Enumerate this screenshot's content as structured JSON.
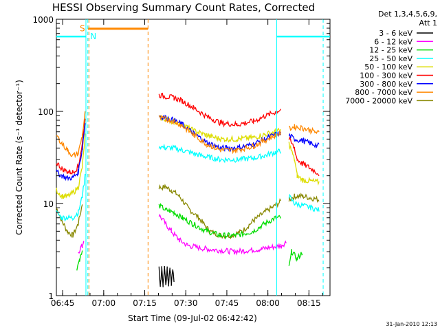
{
  "chart_data": {
    "type": "line",
    "title": "HESSI Observing Summary Count Rates, Corrected",
    "xlabel": "Start Time (09-Jul-02 06:42:42)",
    "ylabel": "Corrected Count Rate (s⁻¹ detector⁻¹)",
    "y_scale": "log",
    "ylim": [
      1,
      1000
    ],
    "x_range_minutes": [
      "06:42:42",
      "08:22:42"
    ],
    "x_ticks": [
      {
        "m": 2.3,
        "label": "06:45"
      },
      {
        "m": 17.3,
        "label": "07:00"
      },
      {
        "m": 32.3,
        "label": "07:15"
      },
      {
        "m": 47.3,
        "label": "07:30"
      },
      {
        "m": 62.3,
        "label": "07:45"
      },
      {
        "m": 77.3,
        "label": "08:00"
      },
      {
        "m": 92.3,
        "label": "08:15"
      }
    ],
    "y_ticks": [
      {
        "v": 1,
        "label": "1"
      },
      {
        "v": 10,
        "label": "10"
      },
      {
        "v": 100,
        "label": "100"
      },
      {
        "v": 1000,
        "label": "1000"
      }
    ],
    "legend": {
      "header1": "Det 1,3,4,5,6,9,",
      "header2": "Att 1",
      "entries": [
        {
          "name": "3 - 6 keV",
          "color": "#000000"
        },
        {
          "name": "6 - 12 keV",
          "color": "#ff00ff"
        },
        {
          "name": "12 - 25 keV",
          "color": "#00dd00"
        },
        {
          "name": "25 - 50 keV",
          "color": "#00ffff"
        },
        {
          "name": "50 - 100 keV",
          "color": "#dddd00"
        },
        {
          "name": "100 - 300 keV",
          "color": "#ff0000"
        },
        {
          "name": "300 - 800 keV",
          "color": "#0000ff"
        },
        {
          "name": "800 - 7000 keV",
          "color": "#ff8800"
        },
        {
          "name": "7000 - 20000 keV",
          "color": "#888800"
        }
      ]
    },
    "series": [
      {
        "name": "7000 - 20000 keV",
        "color": "#888800",
        "segments": [
          [
            [
              0,
              9
            ],
            [
              2,
              6.5
            ],
            [
              4,
              5
            ],
            [
              6,
              4.5
            ],
            [
              8,
              6
            ],
            [
              9.5,
              10
            ]
          ],
          [
            [
              37.5,
              15
            ],
            [
              40,
              15
            ],
            [
              42,
              14
            ],
            [
              45,
              12
            ],
            [
              48,
              9
            ],
            [
              52,
              7
            ],
            [
              56,
              5
            ],
            [
              60,
              4.5
            ],
            [
              64,
              4.5
            ],
            [
              68,
              5
            ],
            [
              72,
              6.5
            ],
            [
              76,
              8
            ],
            [
              80,
              9.5
            ],
            [
              82,
              10.5
            ]
          ],
          [
            [
              85,
              11
            ],
            [
              87,
              12
            ],
            [
              90,
              12
            ],
            [
              93,
              11.5
            ],
            [
              96,
              11
            ]
          ]
        ]
      },
      {
        "name": "6 - 12 keV",
        "color": "#ff00ff",
        "segments": [
          [
            [
              8,
              3
            ],
            [
              9.5,
              3.5
            ],
            [
              10,
              4
            ]
          ],
          [
            [
              37.5,
              7.5
            ],
            [
              40,
              6
            ],
            [
              42,
              5
            ],
            [
              45,
              4
            ],
            [
              48,
              3.5
            ],
            [
              55,
              3.2
            ],
            [
              65,
              3
            ],
            [
              75,
              3.2
            ],
            [
              82,
              3.5
            ],
            [
              84,
              3.8
            ]
          ]
        ]
      },
      {
        "name": "12 - 25 keV",
        "color": "#00dd00",
        "segments": [
          [
            [
              7.5,
              2
            ],
            [
              8.5,
              2.5
            ],
            [
              9.5,
              3
            ]
          ],
          [
            [
              37.5,
              9.5
            ],
            [
              40,
              8.5
            ],
            [
              43,
              8
            ],
            [
              46,
              7
            ],
            [
              50,
              6
            ],
            [
              55,
              5
            ],
            [
              60,
              4.5
            ],
            [
              66,
              4.5
            ],
            [
              72,
              5
            ],
            [
              76,
              6
            ],
            [
              80,
              7
            ],
            [
              82,
              7
            ]
          ],
          [
            [
              85,
              2
            ],
            [
              86,
              3
            ],
            [
              88,
              2.5
            ],
            [
              90,
              3
            ]
          ]
        ]
      },
      {
        "name": "25 - 50 keV",
        "color": "#00ffff",
        "segments": [
          [
            [
              0,
              8
            ],
            [
              2,
              7
            ],
            [
              4,
              7
            ],
            [
              6,
              7
            ],
            [
              8,
              8
            ],
            [
              9.5,
              12
            ],
            [
              10.5,
              20
            ]
          ],
          [
            [
              37.5,
              42
            ],
            [
              40,
              40
            ],
            [
              43,
              40
            ],
            [
              46,
              38
            ],
            [
              50,
              35
            ],
            [
              55,
              32
            ],
            [
              60,
              30
            ],
            [
              66,
              30
            ],
            [
              72,
              31
            ],
            [
              76,
              33
            ],
            [
              80,
              36
            ],
            [
              82,
              37
            ]
          ],
          [
            [
              85,
              12
            ],
            [
              87,
              10
            ],
            [
              90,
              9.5
            ],
            [
              93,
              9
            ],
            [
              96,
              8.5
            ]
          ]
        ]
      },
      {
        "name": "50 - 100 keV",
        "color": "#dddd00",
        "segments": [
          [
            [
              0,
              14
            ],
            [
              2,
              12
            ],
            [
              4,
              12
            ],
            [
              6,
              13
            ],
            [
              8,
              15
            ],
            [
              9.5,
              25
            ],
            [
              10.5,
              55
            ]
          ],
          [
            [
              37.5,
              85
            ],
            [
              40,
              82
            ],
            [
              43,
              78
            ],
            [
              46,
              72
            ],
            [
              50,
              62
            ],
            [
              55,
              55
            ],
            [
              60,
              50
            ],
            [
              66,
              50
            ],
            [
              72,
              52
            ],
            [
              76,
              56
            ],
            [
              80,
              60
            ],
            [
              82,
              62
            ]
          ],
          [
            [
              85,
              45
            ],
            [
              87,
              30
            ],
            [
              88,
              20
            ],
            [
              90,
              18
            ],
            [
              93,
              17.5
            ],
            [
              96,
              17
            ]
          ]
        ]
      },
      {
        "name": "100 - 300 keV",
        "color": "#ff0000",
        "segments": [
          [
            [
              0,
              28
            ],
            [
              2,
              24
            ],
            [
              4,
              22
            ],
            [
              6,
              22
            ],
            [
              8,
              25
            ],
            [
              9.5,
              45
            ],
            [
              10.5,
              85
            ]
          ],
          [
            [
              37.5,
              150
            ],
            [
              40,
              145
            ],
            [
              43,
              140
            ],
            [
              46,
              130
            ],
            [
              50,
              110
            ],
            [
              55,
              88
            ],
            [
              60,
              75
            ],
            [
              66,
              72
            ],
            [
              72,
              78
            ],
            [
              76,
              88
            ],
            [
              80,
              98
            ],
            [
              82,
              105
            ]
          ],
          [
            [
              85,
              50
            ],
            [
              87,
              40
            ],
            [
              88,
              30
            ],
            [
              90,
              27
            ],
            [
              93,
              24
            ],
            [
              96,
              21
            ]
          ]
        ]
      },
      {
        "name": "300 - 800 keV",
        "color": "#0000ff",
        "segments": [
          [
            [
              0,
              22
            ],
            [
              2,
              20
            ],
            [
              4,
              19
            ],
            [
              6,
              19
            ],
            [
              8,
              22
            ],
            [
              9.5,
              40
            ],
            [
              10.5,
              75
            ]
          ],
          [
            [
              37.5,
              90
            ],
            [
              40,
              85
            ],
            [
              43,
              80
            ],
            [
              46,
              72
            ],
            [
              50,
              58
            ],
            [
              55,
              46
            ],
            [
              60,
              40
            ],
            [
              66,
              40
            ],
            [
              72,
              44
            ],
            [
              76,
              50
            ],
            [
              80,
              56
            ],
            [
              82,
              58
            ]
          ],
          [
            [
              85,
              55
            ],
            [
              87,
              50
            ],
            [
              90,
              48
            ],
            [
              93,
              45
            ],
            [
              96,
              42
            ]
          ]
        ]
      },
      {
        "name": "800 - 7000 keV",
        "color": "#ff8800",
        "segments": [
          [
            [
              0,
              55
            ],
            [
              2,
              45
            ],
            [
              4,
              38
            ],
            [
              6,
              33
            ],
            [
              8,
              35
            ],
            [
              9.5,
              55
            ],
            [
              10.5,
              100
            ]
          ],
          [
            [
              37.5,
              85
            ],
            [
              40,
              82
            ],
            [
              43,
              78
            ],
            [
              46,
              70
            ],
            [
              50,
              56
            ],
            [
              55,
              44
            ],
            [
              60,
              38
            ],
            [
              66,
              38
            ],
            [
              72,
              42
            ],
            [
              76,
              48
            ],
            [
              80,
              55
            ],
            [
              82,
              58
            ]
          ],
          [
            [
              85,
              65
            ],
            [
              87,
              68
            ],
            [
              90,
              66
            ],
            [
              93,
              62
            ],
            [
              96,
              58
            ]
          ]
        ]
      },
      {
        "name": "3 - 6 keV",
        "color": "#000000",
        "segments": [
          [
            [
              37.5,
              2
            ],
            [
              38,
              1.3
            ],
            [
              38.5,
              2
            ],
            [
              39,
              1.3
            ],
            [
              39.5,
              2
            ],
            [
              40,
              1.3
            ],
            [
              40.5,
              2
            ],
            [
              41,
              1.3
            ],
            [
              41.5,
              2
            ],
            [
              42,
              1.3
            ],
            [
              42.5,
              2
            ],
            [
              43,
              1.4
            ]
          ]
        ]
      }
    ],
    "attenuator_lines": {
      "color": "#00ffff",
      "at_m": [
        10.8,
        80.5
      ],
      "level": 650
    },
    "saa_bar": {
      "label": "S",
      "color": "#ff8800",
      "from_m": 11.5,
      "to_m": 33.5,
      "level": 790
    },
    "night_label": {
      "label": "N",
      "color": "#00ffff"
    },
    "dashed_markers": [
      {
        "m": 11.5,
        "color": "#00ffff"
      },
      {
        "m": 11.9,
        "color": "#ff8800"
      },
      {
        "m": 33.5,
        "color": "#ff8800"
      },
      {
        "m": 97.5,
        "color": "#00ffff"
      }
    ]
  },
  "footer_stamp": "31-Jan-2010 12:13"
}
